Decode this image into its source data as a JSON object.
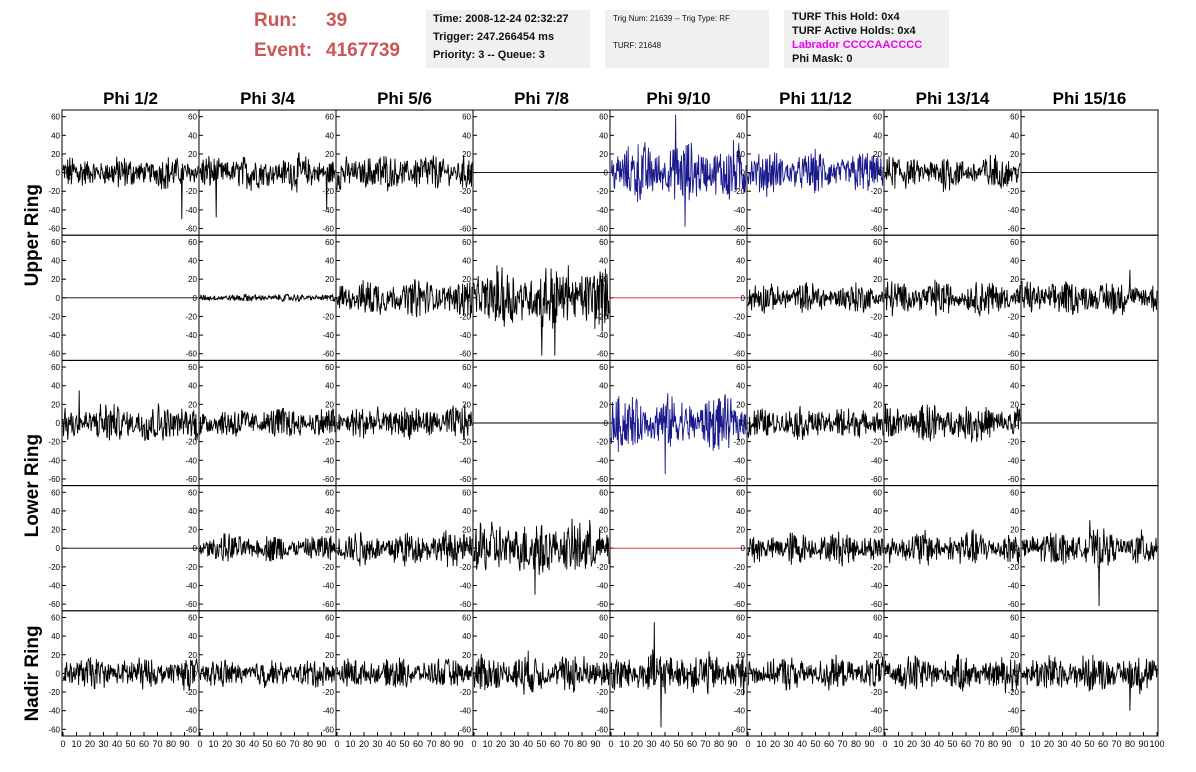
{
  "header": {
    "run_label": "Run:",
    "run_value": "39",
    "event_label": "Event:",
    "event_value": "4167739",
    "time": "Time: 2008-12-24 02:32:27",
    "trigger": "Trigger: 247.266454 ms",
    "priority": "Priority: 3 -- Queue: 3",
    "trig_num": "Trig Num: 21639 -- Trig Type: RF",
    "turf": "TURF: 21648",
    "turf_this_hold": "TURF This Hold: 0x4",
    "turf_active_holds": "TURF Active Holds: 0x4",
    "labrador": "Labrador CCCCAACCCC",
    "phi_mask": "Phi Mask: 0"
  },
  "colors": {
    "run_event": "#cc5555",
    "labrador": "#ee00ee",
    "trace_default": "#000000",
    "trace_highlight": "#1a1a8c",
    "trace_dead": "#cc2222"
  },
  "chart_data": {
    "type": "line",
    "columns": [
      "Phi 1/2",
      "Phi 3/4",
      "Phi 5/6",
      "Phi 7/8",
      "Phi 9/10",
      "Phi 11/12",
      "Phi 13/14",
      "Phi 15/16"
    ],
    "row_labels": [
      "Upper Ring",
      "Lower Ring",
      "Nadir Ring"
    ],
    "ylim": [
      -65,
      65
    ],
    "yticks": [
      -60,
      -40,
      -20,
      0,
      20,
      40,
      60
    ],
    "xlim": [
      0,
      100
    ],
    "xtick_labels": [
      "0",
      "10",
      "20",
      "30",
      "40",
      "50",
      "60",
      "70",
      "80",
      "90",
      "100"
    ],
    "num_panel_rows": 5,
    "panels": [
      [
        {
          "amp": 13,
          "color": "#000000",
          "spikes": [
            [
              88,
              -50
            ]
          ]
        },
        {
          "amp": 14,
          "color": "#000000",
          "spikes": [
            [
              12,
              -48
            ],
            [
              94,
              -40
            ]
          ]
        },
        {
          "amp": 15,
          "color": "#000000",
          "spikes": []
        },
        {
          "amp": 0,
          "color": "#000000",
          "spikes": []
        },
        {
          "amp": 24,
          "color": "#1a1a8c",
          "spikes": [
            [
              48,
              62
            ],
            [
              55,
              -58
            ]
          ]
        },
        {
          "amp": 17,
          "color": "#1a1a8c",
          "spikes": []
        },
        {
          "amp": 14,
          "color": "#000000",
          "spikes": []
        },
        {
          "amp": 0,
          "color": "#000000",
          "spikes": []
        }
      ],
      [
        {
          "amp": 0,
          "color": "#000000",
          "spikes": []
        },
        {
          "amp": 3,
          "color": "#000000",
          "spikes": []
        },
        {
          "amp": 15,
          "color": "#000000",
          "spikes": []
        },
        {
          "amp": 25,
          "color": "#000000",
          "spikes": [
            [
              50,
              -62
            ],
            [
              60,
              -62
            ],
            [
              70,
              35
            ]
          ]
        },
        {
          "amp": 0,
          "color": "#cc2222",
          "spikes": []
        },
        {
          "amp": 12,
          "color": "#000000",
          "spikes": []
        },
        {
          "amp": 14,
          "color": "#000000",
          "spikes": []
        },
        {
          "amp": 14,
          "color": "#000000",
          "spikes": [
            [
              80,
              30
            ]
          ]
        }
      ],
      [
        {
          "amp": 16,
          "color": "#000000",
          "spikes": [
            [
              12,
              35
            ]
          ]
        },
        {
          "amp": 13,
          "color": "#000000",
          "spikes": []
        },
        {
          "amp": 14,
          "color": "#000000",
          "spikes": []
        },
        {
          "amp": 0,
          "color": "#000000",
          "spikes": []
        },
        {
          "amp": 22,
          "color": "#1a1a8c",
          "spikes": [
            [
              40,
              -55
            ]
          ]
        },
        {
          "amp": 13,
          "color": "#000000",
          "spikes": []
        },
        {
          "amp": 15,
          "color": "#000000",
          "spikes": []
        },
        {
          "amp": 0,
          "color": "#000000",
          "spikes": []
        }
      ],
      [
        {
          "amp": 0,
          "color": "#000000",
          "spikes": []
        },
        {
          "amp": 11,
          "color": "#000000",
          "spikes": []
        },
        {
          "amp": 14,
          "color": "#000000",
          "spikes": []
        },
        {
          "amp": 23,
          "color": "#000000",
          "spikes": [
            [
              45,
              -50
            ]
          ]
        },
        {
          "amp": 0,
          "color": "#cc2222",
          "spikes": []
        },
        {
          "amp": 13,
          "color": "#000000",
          "spikes": []
        },
        {
          "amp": 14,
          "color": "#000000",
          "spikes": []
        },
        {
          "amp": 14,
          "color": "#000000",
          "spikes": [
            [
              50,
              30
            ],
            [
              57,
              -62
            ]
          ]
        }
      ],
      [
        {
          "amp": 13,
          "color": "#000000",
          "spikes": []
        },
        {
          "amp": 11,
          "color": "#000000",
          "spikes": []
        },
        {
          "amp": 12,
          "color": "#000000",
          "spikes": []
        },
        {
          "amp": 16,
          "color": "#000000",
          "spikes": []
        },
        {
          "amp": 17,
          "color": "#000000",
          "spikes": [
            [
              32,
              55
            ],
            [
              37,
              -58
            ]
          ]
        },
        {
          "amp": 13,
          "color": "#000000",
          "spikes": []
        },
        {
          "amp": 14,
          "color": "#000000",
          "spikes": []
        },
        {
          "amp": 15,
          "color": "#000000",
          "spikes": [
            [
              80,
              -40
            ]
          ]
        }
      ]
    ]
  }
}
